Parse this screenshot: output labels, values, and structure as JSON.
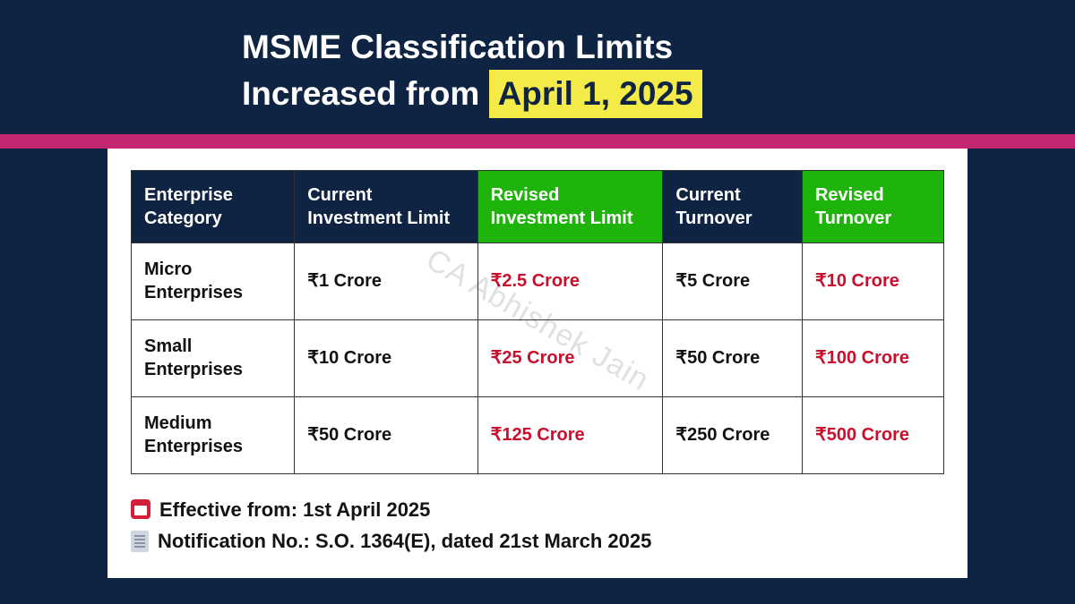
{
  "heading": {
    "line1": "MSME Classification Limits",
    "line2_prefix": "Increased from ",
    "line2_highlight": "April 1, 2025"
  },
  "colors": {
    "page_bg": "#0f2442",
    "title_text": "#ffffff",
    "highlight_bg": "#f4eb49",
    "highlight_text": "#0f2442",
    "divider_bar": "#c4266f",
    "card_bg": "#ffffff",
    "th_bg": "#0f2442",
    "th_revised_bg": "#1fb40b",
    "th_text": "#ffffff",
    "cell_text": "#111111",
    "revised_text": "#c8102e",
    "border": "#333333",
    "calendar_icon": "#d31f3c",
    "doc_icon": "#cfd6e2"
  },
  "table": {
    "columns": [
      {
        "label": "Enterprise Category",
        "revised": false
      },
      {
        "label": "Current Investment Limit",
        "revised": false
      },
      {
        "label": "Revised Investment Limit",
        "revised": true
      },
      {
        "label": "Current Turnover",
        "revised": false
      },
      {
        "label": "Revised Turnover",
        "revised": true
      }
    ],
    "rows": [
      {
        "category": "Micro Enterprises",
        "current_investment": "₹1 Crore",
        "revised_investment": "₹2.5 Crore",
        "current_turnover": "₹5 Crore",
        "revised_turnover": "₹10 Crore"
      },
      {
        "category": "Small Enterprises",
        "current_investment": "₹10 Crore",
        "revised_investment": "₹25 Crore",
        "current_turnover": "₹50 Crore",
        "revised_turnover": "₹100 Crore"
      },
      {
        "category": "Medium Enterprises",
        "current_investment": "₹50 Crore",
        "revised_investment": "₹125 Crore",
        "current_turnover": "₹250 Crore",
        "revised_turnover": "₹500 Crore"
      }
    ]
  },
  "notes": {
    "effective": "Effective from: 1st April 2025",
    "notification": "Notification No.: S.O. 1364(E), dated 21st March 2025"
  },
  "watermark": "CA Abhishek Jain"
}
